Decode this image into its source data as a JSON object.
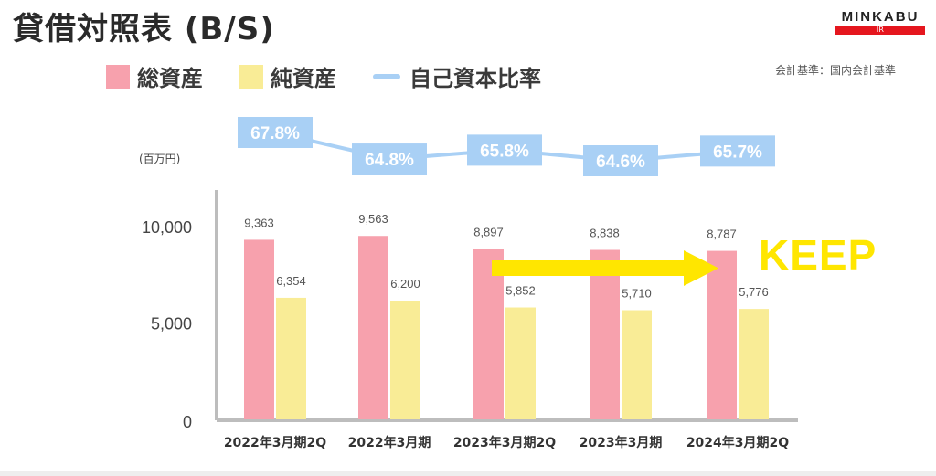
{
  "title": "貸借対照表 (B/S)",
  "logo": {
    "word": "MINKABU",
    "sub": "IR"
  },
  "legend": [
    {
      "label": "総資産",
      "color": "#f7a1ad",
      "shape": "box"
    },
    {
      "label": "純資産",
      "color": "#f9ec96",
      "shape": "box"
    },
    {
      "label": "自己資本比率",
      "color": "#a9d0f5",
      "shape": "line"
    }
  ],
  "note": "会計基準：国内会計基準",
  "chart_data": {
    "type": "bar",
    "unit_label": "(百万円)",
    "categories": [
      "2022年3月期2Q",
      "2022年3月期",
      "2023年3月期2Q",
      "2023年3月期",
      "2024年3月期2Q"
    ],
    "series": [
      {
        "name": "総資産",
        "values": [
          9363,
          9563,
          8897,
          8838,
          8787
        ],
        "labels": [
          "9,363",
          "9,563",
          "8,897",
          "8,838",
          "8,787"
        ],
        "color": "#f7a1ad"
      },
      {
        "name": "純資産",
        "values": [
          6354,
          6200,
          5852,
          5710,
          5776
        ],
        "labels": [
          "6,354",
          "6,200",
          "5,852",
          "5,710",
          "5,776"
        ],
        "color": "#f9ec96"
      }
    ],
    "ratio_series": {
      "name": "自己資本比率",
      "values": [
        67.8,
        64.8,
        65.8,
        64.6,
        65.7
      ],
      "labels": [
        "67.8%",
        "64.8%",
        "65.8%",
        "64.6%",
        "65.7%"
      ],
      "color": "#a9d0f5"
    },
    "yticks": [
      {
        "value": 0,
        "label": "0"
      },
      {
        "value": 5000,
        "label": "5,000"
      },
      {
        "value": 10000,
        "label": "10,000"
      }
    ],
    "ylim": [
      0,
      12000
    ],
    "annotation": {
      "text": "KEEP",
      "arrow_color": "#ffe600"
    }
  }
}
